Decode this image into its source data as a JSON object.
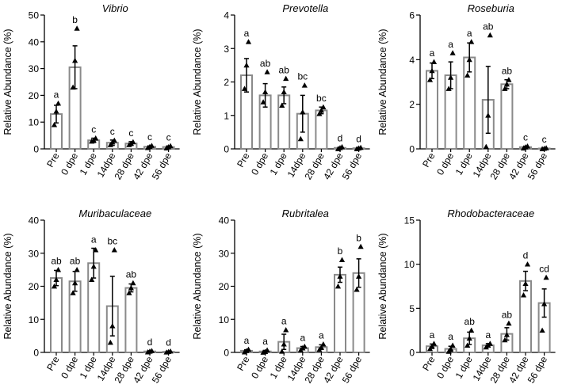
{
  "chart_data": [
    {
      "type": "bar",
      "title": "Vibrio",
      "ylabel": "Relative Abundance (%)",
      "categories": [
        "Pre",
        "0 dpe",
        "1 dpe",
        "14dpe",
        "28 dpe",
        "42 dpe",
        "56 dpe"
      ],
      "values": [
        13,
        30.5,
        3.2,
        2.3,
        2.0,
        0.8,
        0.7
      ],
      "errors": [
        3.3,
        8.0,
        0.8,
        1.0,
        0.7,
        0.3,
        0.4
      ],
      "points": [
        [
          9,
          14,
          17
        ],
        [
          23,
          33,
          45
        ],
        [
          2.8,
          3.2,
          4.0
        ],
        [
          1.5,
          2.5,
          3.2
        ],
        [
          1.5,
          2.0,
          2.6
        ],
        [
          0.4,
          0.8,
          1.2
        ],
        [
          0.3,
          0.7,
          1.1
        ]
      ],
      "letters": [
        "a",
        "b",
        "c",
        "c",
        "c",
        "c",
        "c"
      ],
      "ylim": [
        0,
        50
      ],
      "yticks": [
        0,
        10,
        20,
        30,
        40,
        50
      ]
    },
    {
      "type": "bar",
      "title": "Prevotella",
      "ylabel": "Relative Abundance (%)",
      "categories": [
        "Pre",
        "0 dpe",
        "1 dpe",
        "14dpe",
        "28 dpe",
        "42 dpe",
        "56 dpe"
      ],
      "values": [
        2.2,
        1.6,
        1.6,
        1.05,
        1.15,
        0.03,
        0.02
      ],
      "errors": [
        0.5,
        0.35,
        0.25,
        0.55,
        0.1,
        0.02,
        0.02
      ],
      "points": [
        [
          1.8,
          2.5,
          3.2
        ],
        [
          1.4,
          1.7,
          2.3
        ],
        [
          1.3,
          1.7,
          2.1
        ],
        [
          0.3,
          1.1,
          1.9
        ],
        [
          1.05,
          1.15,
          1.25
        ],
        [
          0.0,
          0.03,
          0.06
        ],
        [
          0.0,
          0.02,
          0.04
        ]
      ],
      "letters": [
        "a",
        "ab",
        "ab",
        "bc",
        "bc",
        "d",
        "d"
      ],
      "ylim": [
        0,
        4
      ],
      "yticks": [
        0,
        1,
        2,
        3,
        4
      ]
    },
    {
      "type": "bar",
      "title": "Roseburia",
      "ylabel": "Relative Abundance (%)",
      "categories": [
        "Pre",
        "0 dpe",
        "1 dpe",
        "14dpe",
        "28 dpe",
        "42 dpe",
        "56 dpe"
      ],
      "values": [
        3.5,
        3.3,
        4.1,
        2.2,
        2.9,
        0.08,
        0.02
      ],
      "errors": [
        0.35,
        0.6,
        0.65,
        1.5,
        0.2,
        0.04,
        0.02
      ],
      "points": [
        [
          3.1,
          3.5,
          3.9
        ],
        [
          2.7,
          3.2,
          4.3
        ],
        [
          3.3,
          4.0,
          4.8
        ],
        [
          0.1,
          1.5,
          5.1
        ],
        [
          2.7,
          2.9,
          3.1
        ],
        [
          0.03,
          0.08,
          0.12
        ],
        [
          0.0,
          0.02,
          0.04
        ]
      ],
      "letters": [
        "a",
        "a",
        "a",
        "ab",
        "ab",
        "c",
        "c"
      ],
      "ylim": [
        0,
        6
      ],
      "yticks": [
        0,
        2,
        4,
        6
      ]
    },
    {
      "type": "bar",
      "title": "Muribaculaceae",
      "ylabel": "Relative Abundance (%)",
      "categories": [
        "Pre",
        "0 dpe",
        "1 dpe",
        "14dpe",
        "28 dpe",
        "42 dpe",
        "56 dpe"
      ],
      "values": [
        22.5,
        21.5,
        27,
        14,
        19.5,
        0.3,
        0.2
      ],
      "errors": [
        2.3,
        3.0,
        4.5,
        9.0,
        1.2,
        0.2,
        0.15
      ],
      "points": [
        [
          20,
          22,
          25
        ],
        [
          18,
          21,
          25
        ],
        [
          22,
          26,
          31
        ],
        [
          3,
          8,
          31
        ],
        [
          18,
          19.5,
          21
        ],
        [
          0.1,
          0.3,
          0.5
        ],
        [
          0.05,
          0.2,
          0.35
        ]
      ],
      "letters": [
        "ab",
        "ab",
        "a",
        "bc",
        "ab",
        "d",
        "d"
      ],
      "ylim": [
        0,
        40
      ],
      "yticks": [
        0,
        10,
        20,
        30,
        40
      ]
    },
    {
      "type": "bar",
      "title": "Rubritalea",
      "ylabel": "Relative Abundance (%)",
      "categories": [
        "Pre",
        "0 dpe",
        "1 dpe",
        "14dpe",
        "28 dpe",
        "42 dpe",
        "56 dpe"
      ],
      "values": [
        0.5,
        0.3,
        3.2,
        1.3,
        1.6,
        23.5,
        24
      ],
      "errors": [
        0.3,
        0.3,
        2.3,
        0.5,
        0.7,
        2.3,
        4.3
      ],
      "points": [
        [
          0.1,
          0.5,
          0.9
        ],
        [
          0.0,
          0.2,
          0.7
        ],
        [
          0.3,
          2.5,
          6.8
        ],
        [
          0.7,
          1.3,
          1.8
        ],
        [
          0.8,
          1.5,
          2.5
        ],
        [
          20,
          23,
          28
        ],
        [
          19,
          23,
          32
        ]
      ],
      "letters": [
        "a",
        "a",
        "a",
        "a",
        "a",
        "b",
        "b"
      ],
      "ylim": [
        0,
        40
      ],
      "yticks": [
        0,
        10,
        20,
        30,
        40
      ]
    },
    {
      "type": "bar",
      "title": "Rhodobacteraceae",
      "ylabel": "Relative Abundance (%)",
      "categories": [
        "Pre",
        "0 dpe",
        "1 dpe",
        "14dpe",
        "28 dpe",
        "42 dpe",
        "56 dpe"
      ],
      "values": [
        0.7,
        0.4,
        1.6,
        0.8,
        2.1,
        8.1,
        5.6
      ],
      "errors": [
        0.25,
        0.3,
        0.7,
        0.2,
        0.7,
        1.1,
        1.6
      ],
      "points": [
        [
          0.4,
          0.7,
          1.0
        ],
        [
          0.1,
          0.4,
          0.8
        ],
        [
          0.8,
          1.6,
          2.5
        ],
        [
          0.6,
          0.8,
          1.0
        ],
        [
          1.4,
          2.0,
          3.3
        ],
        [
          6.5,
          7.8,
          10.0
        ],
        [
          2.5,
          5.5,
          8.5
        ]
      ],
      "letters": [
        "a",
        "a",
        "ab",
        "a",
        "ab",
        "d",
        "cd"
      ],
      "ylim": [
        0,
        15
      ],
      "yticks": [
        0,
        5,
        10,
        15
      ]
    }
  ]
}
